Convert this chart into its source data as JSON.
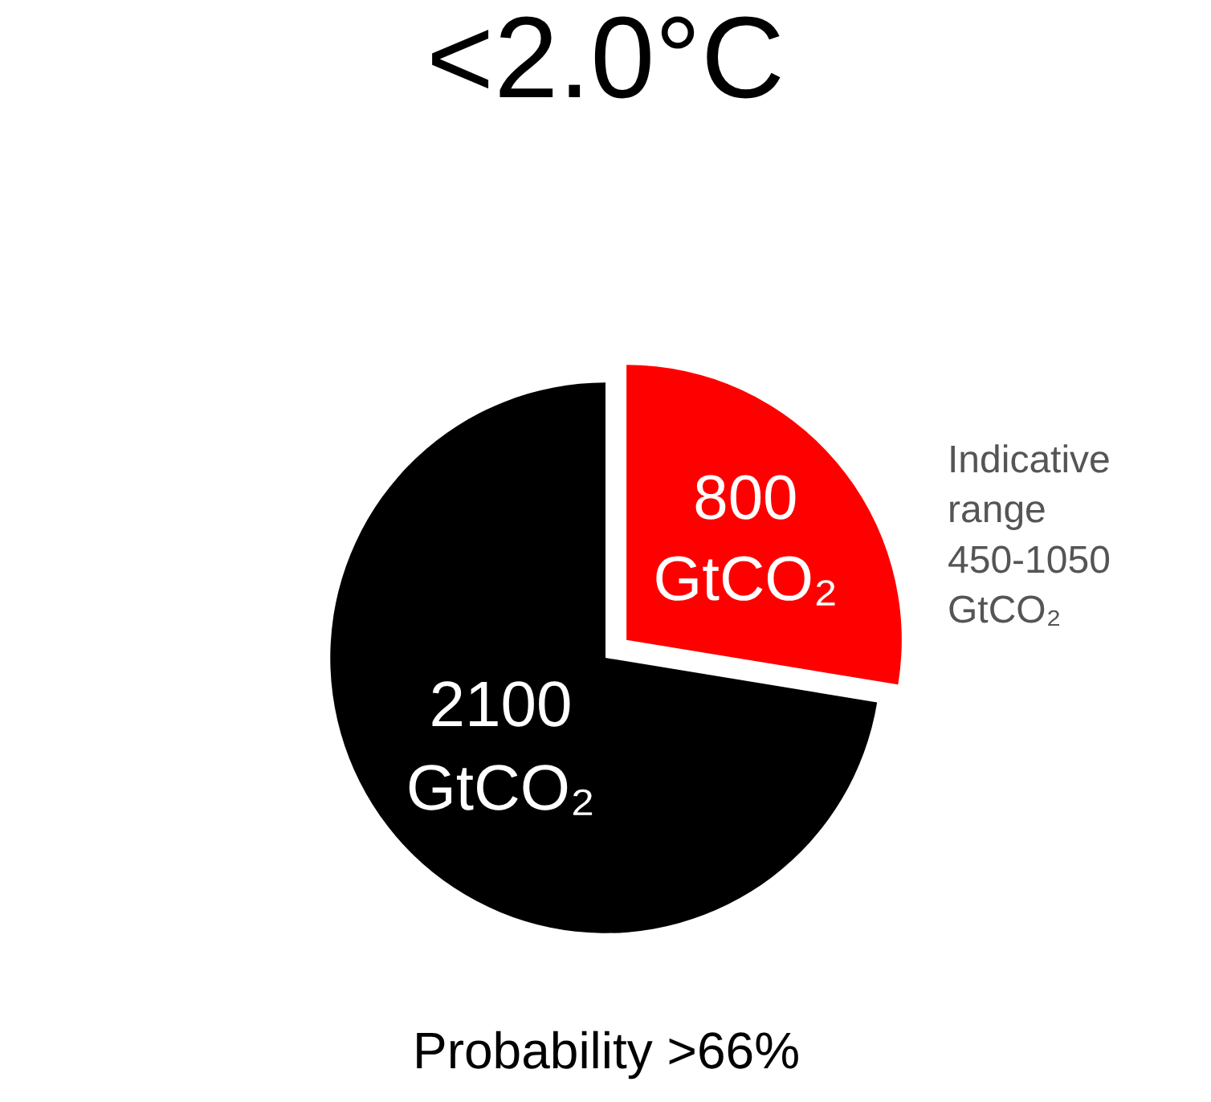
{
  "chart_data": {
    "type": "pie",
    "title": "<2.0°C",
    "categories": [
      null,
      null
    ],
    "values": [
      800,
      2100
    ],
    "colors": [
      "#ff0000",
      "#000000"
    ],
    "value_labels": [
      "800\nGtCO₂",
      "2100\nGtCO₂"
    ],
    "annotations": [
      "Indicative\nrange\n450-1050\nGtCO₂",
      "Probability >66%"
    ],
    "legend": false
  }
}
